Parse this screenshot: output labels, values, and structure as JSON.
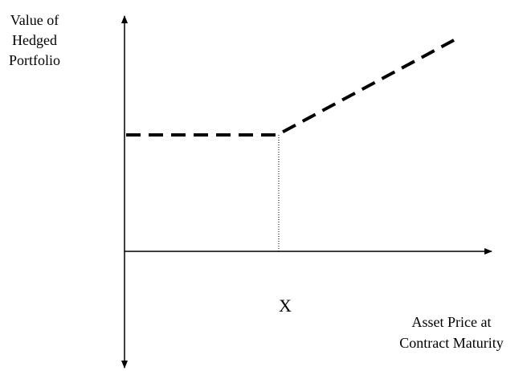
{
  "y_axis_label": [
    "Value of",
    "Hedged",
    "Portfolio"
  ],
  "x_axis_label": [
    "Asset Price at",
    "Contract Maturity"
  ],
  "strike_label": "X"
}
